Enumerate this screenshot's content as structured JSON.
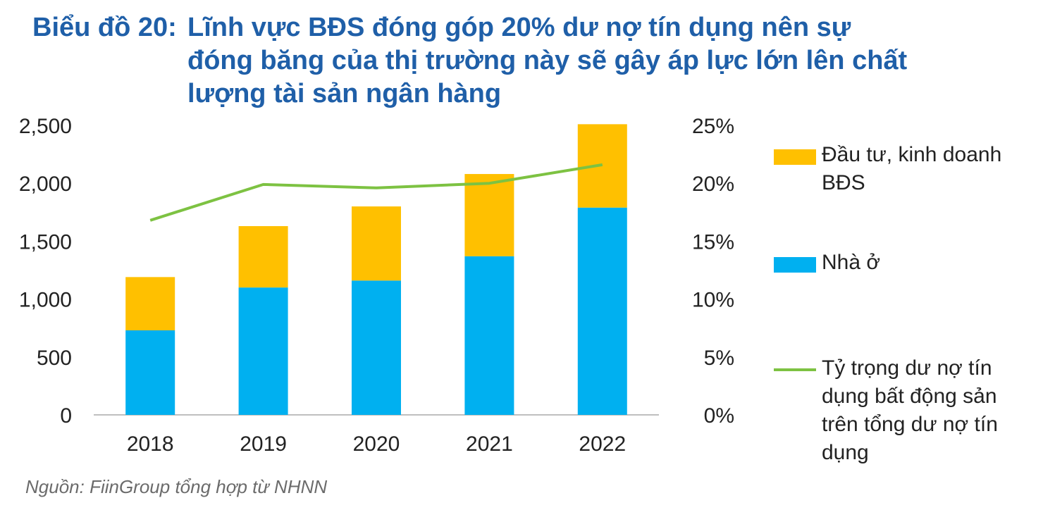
{
  "title": {
    "prefix": "Biểu đồ 20:",
    "line1": "Lĩnh vực BĐS đóng góp 20% dư nợ tín dụng nên sự",
    "line2": "đóng băng của thị trường này sẽ gây áp lực lớn lên chất",
    "line3": "lượng tài sản ngân hàng"
  },
  "source": "Nguồn: FiinGroup tổng hợp từ NHNN",
  "colors": {
    "housing": "#00b0f0",
    "investment": "#ffc000",
    "ratio": "#7dc242",
    "title": "#1f5fa8"
  },
  "legend": [
    {
      "label_line1": "Đầu tư, kinh doanh",
      "label_line2": "BĐS"
    },
    {
      "label_line1": "Nhà ở"
    },
    {
      "label_line1": "Tỷ trọng dư nợ tín",
      "label_line2": "dụng bất động sản",
      "label_line3": "trên tổng dư nợ tín",
      "label_line4": "dụng"
    }
  ],
  "chart_data": {
    "type": "bar",
    "stacked": true,
    "categories": [
      "2018",
      "2019",
      "2020",
      "2021",
      "2022"
    ],
    "series": [
      {
        "name": "Nhà ở",
        "values": [
          730,
          1100,
          1160,
          1370,
          1790
        ]
      },
      {
        "name": "Đầu tư, kinh doanh BĐS",
        "values": [
          460,
          530,
          640,
          710,
          720
        ]
      }
    ],
    "line_series": {
      "name": "Tỷ trọng dư nợ tín dụng bất động sản trên tổng dư nợ tín dụng",
      "values": [
        0.168,
        0.199,
        0.196,
        0.2,
        0.216
      ]
    },
    "ylim": [
      0,
      2500
    ],
    "yticks": [
      "0",
      "500",
      "1,000",
      "1,500",
      "2,000",
      "2,500"
    ],
    "y2lim": [
      0,
      0.25
    ],
    "y2ticks": [
      "0%",
      "5%",
      "10%",
      "15%",
      "20%",
      "25%"
    ],
    "legend_position": "right"
  }
}
